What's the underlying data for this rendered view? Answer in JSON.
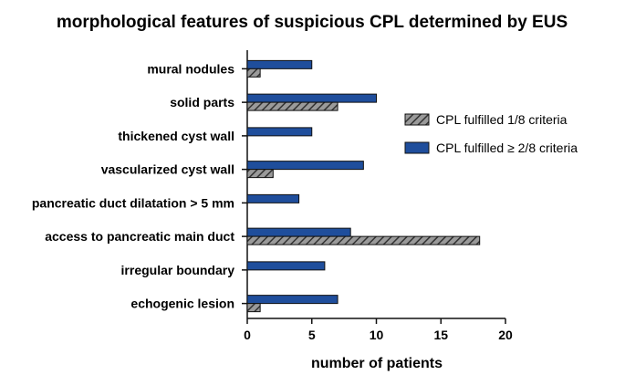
{
  "chart_data": {
    "type": "bar",
    "orientation": "horizontal",
    "title": "morphological features of suspicious CPL determined by EUS",
    "xlabel": "number of patients",
    "ylabel": "",
    "xlim": [
      0,
      20
    ],
    "xticks": [
      0,
      5,
      10,
      15,
      20
    ],
    "grid": false,
    "legend_position": "right",
    "categories": [
      "mural nodules",
      "solid parts",
      "thickened cyst wall",
      "vascularized cyst wall",
      "pancreatic duct dilatation > 5 mm",
      "access to pancreatic main duct",
      "irregular boundary",
      "echogenic lesion"
    ],
    "series": [
      {
        "name": "CPL fulfilled ≥ 2/8 criteria",
        "color": "#1f4e9c",
        "pattern": "solid",
        "values": [
          5,
          10,
          5,
          9,
          4,
          8,
          6,
          7
        ]
      },
      {
        "name": "CPL fulfilled 1/8 criteria",
        "color": "#8c8c8c",
        "pattern": "hatched",
        "values": [
          1,
          7,
          0,
          2,
          0,
          18,
          0,
          1
        ]
      }
    ],
    "legend_order": [
      1,
      0
    ]
  }
}
